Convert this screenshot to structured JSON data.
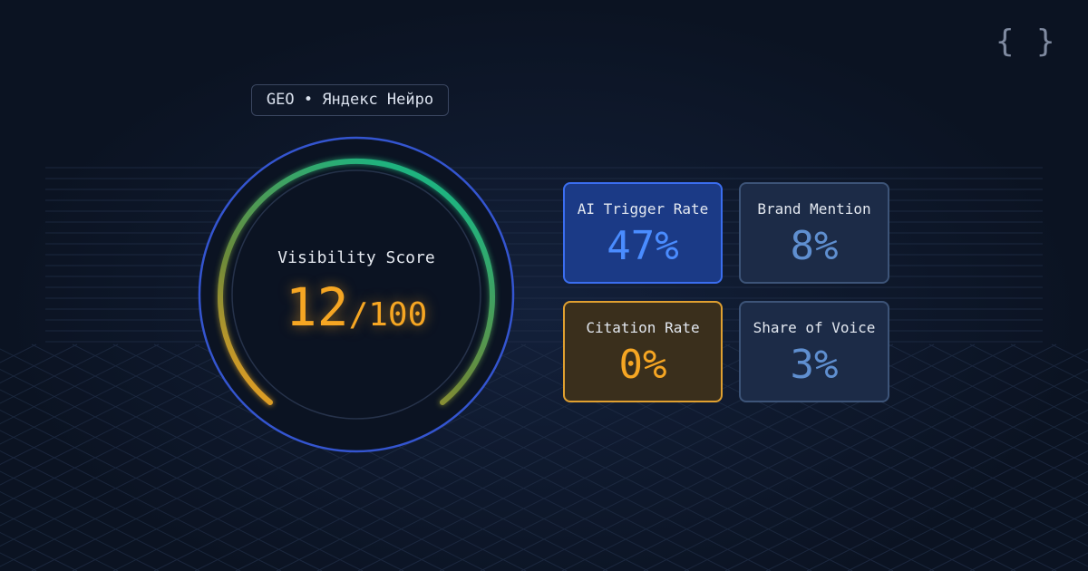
{
  "logo": "{ }",
  "badge": "GEO • Яндекс Нейро",
  "score": {
    "label": "Visibility Score",
    "value": "12",
    "suffix": "/100"
  },
  "metrics": [
    {
      "label": "AI Trigger Rate",
      "value": "47%"
    },
    {
      "label": "Brand Mention",
      "value": "8%"
    },
    {
      "label": "Citation Rate",
      "value": "0%"
    },
    {
      "label": "Share of Voice",
      "value": "3%"
    }
  ]
}
